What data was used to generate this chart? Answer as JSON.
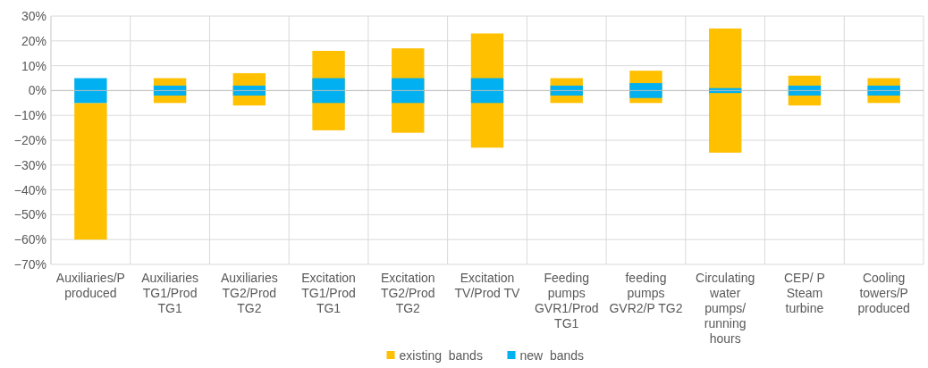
{
  "chart_data": {
    "type": "bar",
    "categories": [
      "Auxiliaries/P produced",
      "Auxiliaries TG1/Prod TG1",
      "Auxiliaries TG2/Prod TG2",
      "Excitation TG1/Prod TG1",
      "Excitation TG2/Prod TG2",
      "Excitation TV/Prod TV",
      "Feeding pumps GVR1/Prod TG1",
      "feeding pumps GVR2/P TG2",
      "Circulating water pumps/ running hours",
      "CEP/ P Steam turbine",
      "Cooling towers/P produced"
    ],
    "series": [
      {
        "name": "existing  bands",
        "color": "#ffc000",
        "values": [
          55,
          10,
          13,
          32,
          34,
          46,
          10,
          13,
          50,
          12,
          10
        ],
        "base": [
          -60,
          -5,
          -6,
          -16,
          -17,
          -23,
          -5,
          -5,
          -25,
          -6,
          -5
        ]
      },
      {
        "name": "new  bands",
        "color": "#00b0f0",
        "values": [
          10,
          4,
          4,
          10,
          10,
          10,
          4,
          6,
          2,
          4,
          4
        ],
        "base": [
          -5,
          -2,
          -2,
          -5,
          -5,
          -5,
          -2,
          -3,
          -1,
          -2,
          -2
        ]
      }
    ],
    "ylim": [
      -70,
      30
    ],
    "yticks": [
      {
        "value": -70,
        "label": "−70%"
      },
      {
        "value": -60,
        "label": "−60%"
      },
      {
        "value": -50,
        "label": "−50%"
      },
      {
        "value": -40,
        "label": "−40%"
      },
      {
        "value": -30,
        "label": "−30%"
      },
      {
        "value": -20,
        "label": "−20%"
      },
      {
        "value": -10,
        "label": "−10%"
      },
      {
        "value": 0,
        "label": "0%"
      },
      {
        "value": 10,
        "label": "10%"
      },
      {
        "value": 20,
        "label": "20%"
      },
      {
        "value": 30,
        "label": "30%"
      }
    ],
    "grid": true,
    "legend": "bottom"
  }
}
